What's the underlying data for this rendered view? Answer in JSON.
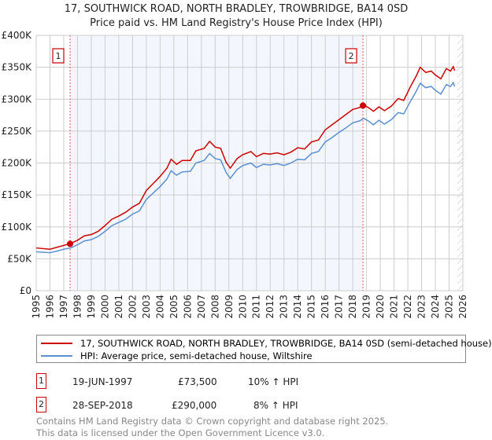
{
  "title_line1": "17, SOUTHWICK ROAD, NORTH BRADLEY, TROWBRIDGE, BA14 0SD",
  "title_line2": "Price paid vs. HM Land Registry's House Price Index (HPI)",
  "chart_data": {
    "type": "line",
    "ylim": [
      0,
      400000
    ],
    "xlim": [
      1995,
      2026
    ],
    "y_ticks": [
      0,
      50000,
      100000,
      150000,
      200000,
      250000,
      300000,
      350000,
      400000
    ],
    "y_tick_labels": [
      "£0",
      "£50K",
      "£100K",
      "£150K",
      "£200K",
      "£250K",
      "£300K",
      "£350K",
      "£400K"
    ],
    "x_tick_labels": [
      "1995",
      "1996",
      "1997",
      "1998",
      "1999",
      "2000",
      "2001",
      "2002",
      "2003",
      "2004",
      "2005",
      "2006",
      "2007",
      "2008",
      "2009",
      "2010",
      "2011",
      "2012",
      "2013",
      "2014",
      "2015",
      "2016",
      "2017",
      "2018",
      "2019",
      "2020",
      "2021",
      "2022",
      "2023",
      "2024",
      "2025",
      "2026"
    ],
    "grid": true,
    "shaded_span": [
      1997.46,
      2018.74
    ],
    "hatched_from": 2025.6,
    "x": [
      1995,
      1996,
      1996.5,
      1997,
      1997.5,
      1998,
      1998.5,
      1999,
      1999.5,
      2000,
      2000.5,
      2001,
      2001.5,
      2002,
      2002.5,
      2003,
      2003.5,
      2004,
      2004.5,
      2004.8,
      2005.2,
      2005.6,
      2006.2,
      2006.6,
      2007.2,
      2007.6,
      2008,
      2008.4,
      2008.8,
      2009.1,
      2009.6,
      2010,
      2010.6,
      2011,
      2011.5,
      2012,
      2012.5,
      2013,
      2013.5,
      2014,
      2014.5,
      2015,
      2015.5,
      2016,
      2016.5,
      2017,
      2017.5,
      2018,
      2018.5,
      2018.8,
      2019.2,
      2019.5,
      2019.9,
      2020.3,
      2020.8,
      2021.3,
      2021.7,
      2022.2,
      2022.6,
      2022.9,
      2023.3,
      2023.7,
      2024,
      2024.4,
      2024.8,
      2025.1,
      2025.3,
      2025.4
    ],
    "series": [
      {
        "name": "17, SOUTHWICK ROAD, NORTH BRADLEY, TROWBRIDGE, BA14 0SD (semi-detached house)",
        "color": "#cc0000",
        "values": [
          67,
          65,
          68,
          71,
          74,
          79,
          86,
          88,
          93,
          102,
          112,
          117,
          123,
          131,
          137,
          157,
          168,
          179,
          192,
          206,
          198,
          204,
          204,
          219,
          223,
          234,
          225,
          223,
          201,
          192,
          207,
          213,
          218,
          210,
          215,
          214,
          216,
          213,
          217,
          224,
          222,
          233,
          236,
          252,
          260,
          268,
          276,
          284,
          287,
          291,
          286,
          281,
          288,
          282,
          289,
          301,
          298,
          320,
          336,
          350,
          342,
          344,
          338,
          332,
          348,
          344,
          351,
          345
        ]
      },
      {
        "name": "HPI: Average price, semi-detached house, Wiltshire",
        "color": "#5b8fd0",
        "values": [
          61,
          59.5,
          62,
          65,
          67,
          72,
          78,
          80,
          85,
          93,
          102,
          107,
          112,
          120,
          125,
          143,
          153,
          163,
          175,
          188,
          181,
          186,
          187,
          200,
          204,
          215,
          207,
          205,
          185,
          176,
          190,
          196,
          200,
          193,
          198,
          197,
          199,
          196,
          200,
          206,
          205,
          215,
          218,
          233,
          240,
          248,
          255,
          263,
          266,
          270,
          265,
          260,
          267,
          261,
          268,
          279,
          277,
          297,
          312,
          325,
          318,
          320,
          314,
          308,
          323,
          320,
          326,
          320
        ]
      }
    ],
    "value_unit": "thousand GBP",
    "sales": [
      {
        "label": "1",
        "x": 1997.46,
        "y": 73.5
      },
      {
        "label": "2",
        "x": 2018.74,
        "y": 290
      }
    ]
  },
  "legend": {
    "red_label": "17, SOUTHWICK ROAD, NORTH BRADLEY, TROWBRIDGE, BA14 0SD (semi-detached house)",
    "blue_label": "HPI: Average price, semi-detached house, Wiltshire"
  },
  "transactions": [
    {
      "num": "1",
      "date": "19-JUN-1997",
      "price": "£73,500",
      "hpi": "10% ↑ HPI"
    },
    {
      "num": "2",
      "date": "28-SEP-2018",
      "price": "£290,000",
      "hpi": "8% ↑ HPI"
    }
  ],
  "footer_line1": "Contains HM Land Registry data © Crown copyright and database right 2025.",
  "footer_line2": "This data is licensed under the Open Government Licence v3.0."
}
